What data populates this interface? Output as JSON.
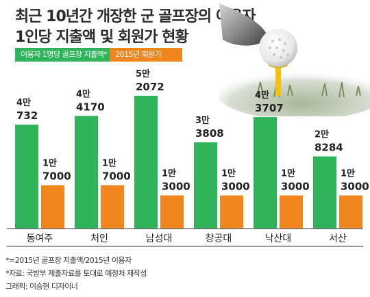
{
  "title": {
    "line1": "최근 10년간 개장한 군 골프장의 이용자",
    "line2": "1인당 지출액 및 회원가 현황"
  },
  "legend": {
    "green_label": "이용자 1명당 골프장 지출액*",
    "orange_label": "2015년 회원가",
    "green_color": "#2fb45b",
    "orange_color": "#f0861e"
  },
  "chart_data": {
    "type": "bar",
    "categories": [
      "동여주",
      "처인",
      "남성대",
      "창공대",
      "낙산대",
      "서산"
    ],
    "series": [
      {
        "name": "이용자 1명당 골프장 지출액*",
        "values": [
          40732,
          44170,
          52072,
          33808,
          43707,
          28284
        ],
        "labels_top": [
          "4만",
          "4만",
          "5만",
          "3만",
          "4만",
          "2만"
        ],
        "labels_bottom": [
          "732",
          "4170",
          "2072",
          "3808",
          "3707",
          "8284"
        ]
      },
      {
        "name": "2015년 회원가",
        "values": [
          17000,
          17000,
          13000,
          13000,
          13000,
          13000
        ],
        "labels_top": [
          "1만",
          "1만",
          "1만",
          "1만",
          "1만",
          "1만"
        ],
        "labels_bottom": [
          "7000",
          "7000",
          "3000",
          "3000",
          "3000",
          "3000"
        ]
      }
    ],
    "ylim": [
      0,
      55000
    ],
    "grid": false
  },
  "notes": {
    "line1": "*=2015년 골프장 지출액/2015년 이용자",
    "line2": "*자료: 국방부 제출자료를 토대로 예정처 재작성",
    "line3": "그래픽: 이승현 디자이너"
  }
}
